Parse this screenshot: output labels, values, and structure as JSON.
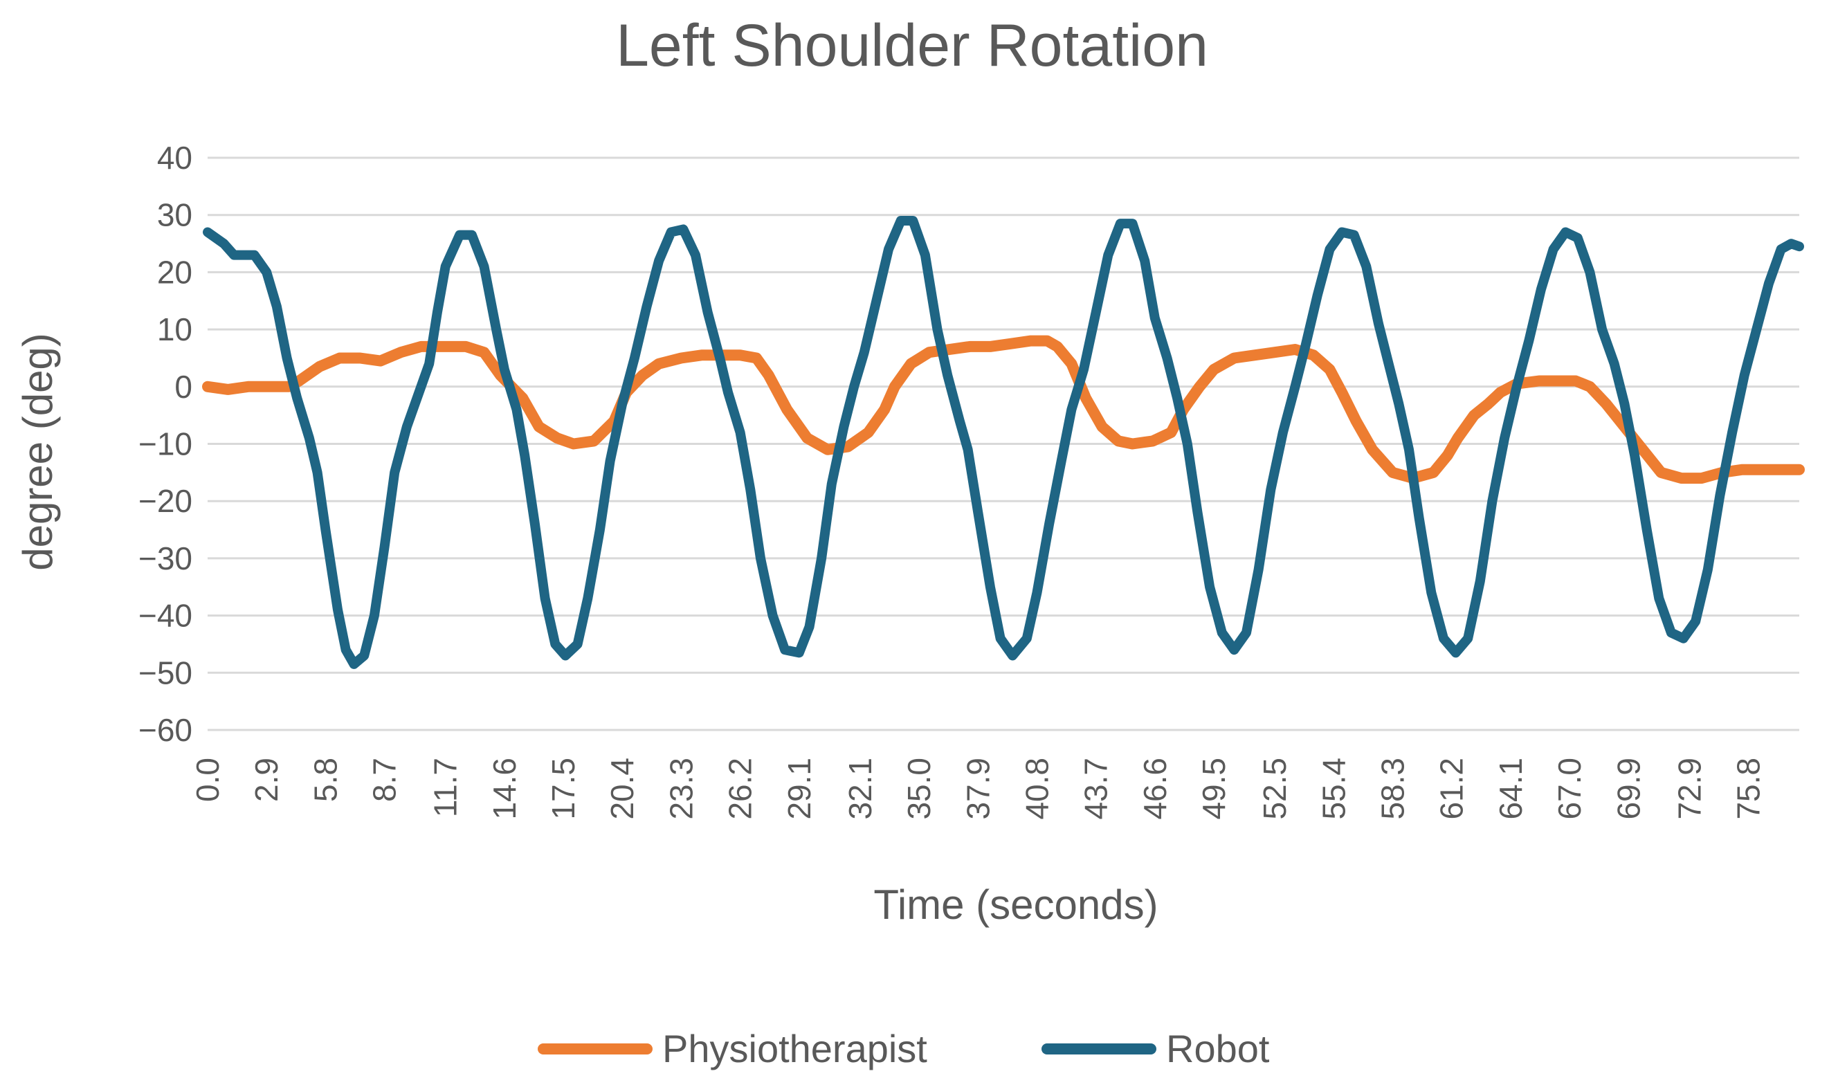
{
  "chart_data": {
    "type": "line",
    "title": "Left Shoulder Rotation",
    "xlabel": "Time (seconds)",
    "ylabel": "degree (deg)",
    "ylim": [
      -60,
      40
    ],
    "y_ticks": [
      40,
      30,
      20,
      10,
      0,
      -10,
      -20,
      -30,
      -40,
      -50,
      -60
    ],
    "y_tick_labels": [
      "40",
      "30",
      "20",
      "10",
      "0",
      "−10",
      "−20",
      "−30",
      "−40",
      "−50",
      "−60"
    ],
    "xlim": [
      0,
      78.3
    ],
    "x_ticks": [
      "0.0",
      "2.9",
      "5.8",
      "8.7",
      "11.7",
      "14.6",
      "17.5",
      "20.4",
      "23.3",
      "26.2",
      "29.1",
      "32.1",
      "35.0",
      "37.9",
      "40.8",
      "43.7",
      "46.6",
      "49.5",
      "52.5",
      "55.4",
      "58.3",
      "61.2",
      "64.1",
      "67.0",
      "69.9",
      "72.9",
      "75.8"
    ],
    "grid": true,
    "legend": "bottom",
    "series": [
      {
        "name": "Physiotherapist",
        "color": "#ED7D31",
        "points": [
          [
            0.0,
            0
          ],
          [
            1,
            -0.5
          ],
          [
            2,
            0
          ],
          [
            3,
            0
          ],
          [
            4,
            0
          ],
          [
            4.5,
            1
          ],
          [
            5.5,
            3.5
          ],
          [
            6.5,
            5
          ],
          [
            7.5,
            5
          ],
          [
            8.5,
            4.5
          ],
          [
            9.5,
            6
          ],
          [
            10.5,
            7
          ],
          [
            11.7,
            7
          ],
          [
            12.7,
            7
          ],
          [
            13.6,
            6
          ],
          [
            14.4,
            2
          ],
          [
            15.5,
            -2
          ],
          [
            16.3,
            -7
          ],
          [
            17.2,
            -9
          ],
          [
            18,
            -10
          ],
          [
            19,
            -9.5
          ],
          [
            20,
            -6
          ],
          [
            20.6,
            -1
          ],
          [
            21.4,
            2
          ],
          [
            22.2,
            4
          ],
          [
            23.3,
            5
          ],
          [
            24.3,
            5.5
          ],
          [
            25.3,
            5.5
          ],
          [
            26.2,
            5.5
          ],
          [
            27,
            5
          ],
          [
            27.6,
            2
          ],
          [
            28.5,
            -4
          ],
          [
            29.5,
            -9
          ],
          [
            30.5,
            -11
          ],
          [
            31.5,
            -10.5
          ],
          [
            32.5,
            -8
          ],
          [
            33.3,
            -4
          ],
          [
            33.8,
            0
          ],
          [
            34.6,
            4
          ],
          [
            35.5,
            6
          ],
          [
            36.5,
            6.5
          ],
          [
            37.5,
            7
          ],
          [
            38.5,
            7
          ],
          [
            39.5,
            7.5
          ],
          [
            40.5,
            8
          ],
          [
            41.3,
            8
          ],
          [
            41.8,
            7
          ],
          [
            42.5,
            4
          ],
          [
            43.2,
            -2
          ],
          [
            44,
            -7
          ],
          [
            44.8,
            -9.5
          ],
          [
            45.5,
            -10
          ],
          [
            46.5,
            -9.5
          ],
          [
            47.4,
            -8
          ],
          [
            48,
            -4
          ],
          [
            48.8,
            0
          ],
          [
            49.5,
            3
          ],
          [
            50.5,
            5
          ],
          [
            51.5,
            5.5
          ],
          [
            52.5,
            6
          ],
          [
            53.5,
            6.5
          ],
          [
            54.4,
            5.5
          ],
          [
            55.2,
            3
          ],
          [
            55.8,
            -1
          ],
          [
            56.5,
            -6
          ],
          [
            57.3,
            -11
          ],
          [
            58.3,
            -15
          ],
          [
            59.3,
            -16
          ],
          [
            60.3,
            -15
          ],
          [
            61,
            -12
          ],
          [
            61.5,
            -9
          ],
          [
            62.3,
            -5
          ],
          [
            63,
            -3
          ],
          [
            63.6,
            -1
          ],
          [
            64.4,
            0.5
          ],
          [
            65.5,
            1
          ],
          [
            66.5,
            1
          ],
          [
            67.3,
            1
          ],
          [
            68,
            0
          ],
          [
            68.8,
            -3
          ],
          [
            69.7,
            -7
          ],
          [
            70.6,
            -11
          ],
          [
            71.5,
            -15
          ],
          [
            72.5,
            -16
          ],
          [
            73.5,
            -16
          ],
          [
            74.5,
            -15
          ],
          [
            75.5,
            -14.5
          ],
          [
            76.5,
            -14.5
          ],
          [
            78.3,
            -14.5
          ]
        ]
      },
      {
        "name": "Robot",
        "color": "#1F6584",
        "points": [
          [
            0.0,
            27
          ],
          [
            0.8,
            25
          ],
          [
            1.3,
            23
          ],
          [
            2.3,
            23
          ],
          [
            2.9,
            20
          ],
          [
            3.4,
            14
          ],
          [
            3.9,
            5
          ],
          [
            4.4,
            -2
          ],
          [
            5,
            -9
          ],
          [
            5.4,
            -15
          ],
          [
            5.8,
            -25
          ],
          [
            6.4,
            -39
          ],
          [
            6.8,
            -46
          ],
          [
            7.2,
            -48.5
          ],
          [
            7.7,
            -47
          ],
          [
            8.2,
            -40
          ],
          [
            8.7,
            -28
          ],
          [
            9.2,
            -15
          ],
          [
            9.8,
            -7
          ],
          [
            10.4,
            -1
          ],
          [
            10.9,
            4
          ],
          [
            11.3,
            13
          ],
          [
            11.7,
            21
          ],
          [
            12.4,
            26.5
          ],
          [
            13,
            26.5
          ],
          [
            13.6,
            21
          ],
          [
            14.2,
            10
          ],
          [
            14.6,
            3
          ],
          [
            15.2,
            -4
          ],
          [
            15.6,
            -12
          ],
          [
            16.1,
            -24
          ],
          [
            16.6,
            -37
          ],
          [
            17.1,
            -45
          ],
          [
            17.6,
            -47
          ],
          [
            18.2,
            -45
          ],
          [
            18.7,
            -37
          ],
          [
            19.3,
            -25
          ],
          [
            19.8,
            -13
          ],
          [
            20.4,
            -3
          ],
          [
            21,
            5
          ],
          [
            21.6,
            14
          ],
          [
            22.2,
            22
          ],
          [
            22.8,
            27
          ],
          [
            23.4,
            27.5
          ],
          [
            24,
            23
          ],
          [
            24.6,
            13
          ],
          [
            25.2,
            5
          ],
          [
            25.6,
            -1
          ],
          [
            26.2,
            -8
          ],
          [
            26.7,
            -18
          ],
          [
            27.2,
            -30
          ],
          [
            27.8,
            -40
          ],
          [
            28.4,
            -46
          ],
          [
            29.1,
            -46.5
          ],
          [
            29.6,
            -42
          ],
          [
            30.2,
            -30
          ],
          [
            30.7,
            -17
          ],
          [
            31.3,
            -7
          ],
          [
            31.8,
            0
          ],
          [
            32.3,
            6
          ],
          [
            32.9,
            15
          ],
          [
            33.5,
            24
          ],
          [
            34.1,
            29
          ],
          [
            34.7,
            29
          ],
          [
            35.3,
            23
          ],
          [
            35.9,
            10
          ],
          [
            36.4,
            2
          ],
          [
            37,
            -6
          ],
          [
            37.4,
            -11
          ],
          [
            37.9,
            -22
          ],
          [
            38.5,
            -35
          ],
          [
            39,
            -44
          ],
          [
            39.6,
            -47
          ],
          [
            40.3,
            -44
          ],
          [
            40.8,
            -36
          ],
          [
            41.4,
            -24
          ],
          [
            42,
            -13
          ],
          [
            42.5,
            -4
          ],
          [
            43.1,
            3
          ],
          [
            43.7,
            13
          ],
          [
            44.3,
            23
          ],
          [
            44.9,
            28.5
          ],
          [
            45.5,
            28.5
          ],
          [
            46.1,
            22
          ],
          [
            46.6,
            12
          ],
          [
            47.2,
            5
          ],
          [
            47.7,
            -2
          ],
          [
            48.2,
            -10
          ],
          [
            48.7,
            -22
          ],
          [
            49.3,
            -35
          ],
          [
            49.9,
            -43
          ],
          [
            50.5,
            -46
          ],
          [
            51.1,
            -43
          ],
          [
            51.7,
            -32
          ],
          [
            52.3,
            -18
          ],
          [
            52.9,
            -8
          ],
          [
            53.5,
            0
          ],
          [
            54,
            7
          ],
          [
            54.6,
            16
          ],
          [
            55.2,
            24
          ],
          [
            55.8,
            27
          ],
          [
            56.4,
            26.5
          ],
          [
            57,
            21
          ],
          [
            57.6,
            11
          ],
          [
            58.1,
            4
          ],
          [
            58.6,
            -3
          ],
          [
            59.1,
            -11
          ],
          [
            59.6,
            -23
          ],
          [
            60.2,
            -36
          ],
          [
            60.8,
            -44
          ],
          [
            61.4,
            -46.5
          ],
          [
            62,
            -44
          ],
          [
            62.6,
            -34
          ],
          [
            63.2,
            -20
          ],
          [
            63.8,
            -9
          ],
          [
            64.4,
            0
          ],
          [
            65,
            8
          ],
          [
            65.6,
            17
          ],
          [
            66.2,
            24
          ],
          [
            66.8,
            27
          ],
          [
            67.4,
            26
          ],
          [
            68,
            20
          ],
          [
            68.6,
            10
          ],
          [
            69.2,
            4
          ],
          [
            69.7,
            -3
          ],
          [
            70.2,
            -12
          ],
          [
            70.8,
            -25
          ],
          [
            71.4,
            -37
          ],
          [
            72,
            -43
          ],
          [
            72.6,
            -44
          ],
          [
            73.2,
            -41
          ],
          [
            73.8,
            -32
          ],
          [
            74.4,
            -19
          ],
          [
            75,
            -8
          ],
          [
            75.6,
            2
          ],
          [
            76.2,
            10
          ],
          [
            76.8,
            18
          ],
          [
            77.4,
            24
          ],
          [
            77.9,
            25
          ],
          [
            78.3,
            24.5
          ]
        ]
      }
    ]
  }
}
